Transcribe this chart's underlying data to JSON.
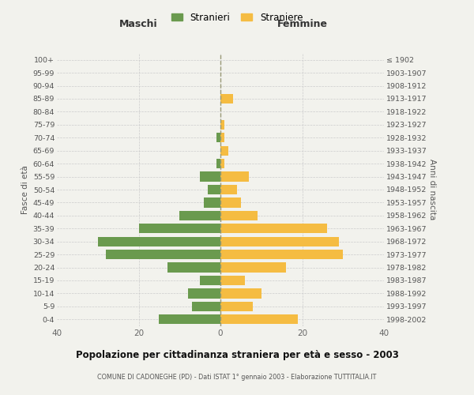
{
  "age_groups": [
    "0-4",
    "5-9",
    "10-14",
    "15-19",
    "20-24",
    "25-29",
    "30-34",
    "35-39",
    "40-44",
    "45-49",
    "50-54",
    "55-59",
    "60-64",
    "65-69",
    "70-74",
    "75-79",
    "80-84",
    "85-89",
    "90-94",
    "95-99",
    "100+"
  ],
  "birth_years": [
    "1998-2002",
    "1993-1997",
    "1988-1992",
    "1983-1987",
    "1978-1982",
    "1973-1977",
    "1968-1972",
    "1963-1967",
    "1958-1962",
    "1953-1957",
    "1948-1952",
    "1943-1947",
    "1938-1942",
    "1933-1937",
    "1928-1932",
    "1923-1927",
    "1918-1922",
    "1913-1917",
    "1908-1912",
    "1903-1907",
    "≤ 1902"
  ],
  "maschi": [
    15,
    7,
    8,
    5,
    13,
    28,
    30,
    20,
    10,
    4,
    3,
    5,
    1,
    0,
    1,
    0,
    0,
    0,
    0,
    0,
    0
  ],
  "femmine": [
    19,
    8,
    10,
    6,
    16,
    30,
    29,
    26,
    9,
    5,
    4,
    7,
    1,
    2,
    1,
    1,
    0,
    3,
    0,
    0,
    0
  ],
  "maschi_color": "#6a9a4e",
  "femmine_color": "#f5bc42",
  "background_color": "#f2f2ed",
  "title": "Popolazione per cittadinanza straniera per età e sesso - 2003",
  "subtitle": "COMUNE DI CADONEGHE (PD) - Dati ISTAT 1° gennaio 2003 - Elaborazione TUTTITALIA.IT",
  "header_left": "Maschi",
  "header_right": "Femmine",
  "ylabel_left": "Fasce di età",
  "ylabel_right": "Anni di nascita",
  "xlim": 40,
  "legend_stranieri": "Stranieri",
  "legend_straniere": "Straniere"
}
